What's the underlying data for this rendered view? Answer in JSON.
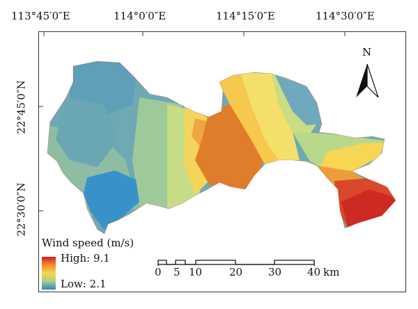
{
  "longitude_labels": [
    "113°45′0″E",
    "114°0′0″E",
    "114°15′0″E",
    "114°30′0″E"
  ],
  "latitude_labels": [
    "22°45′0″N",
    "22°30′0″N"
  ],
  "north_arrow": {
    "label": "N",
    "icon": "north-arrow-icon"
  },
  "legend": {
    "title": "Wind speed (m/s)",
    "high": "High: 9.1",
    "low": "Low: 2.1",
    "colors": [
      "#d7191c",
      "#e8692b",
      "#f6d84a",
      "#a8cf8a",
      "#2b83c4"
    ]
  },
  "scale_bar": {
    "ticks": [
      "0",
      "5",
      "10",
      "20",
      "30",
      "40"
    ],
    "unit": "km"
  }
}
